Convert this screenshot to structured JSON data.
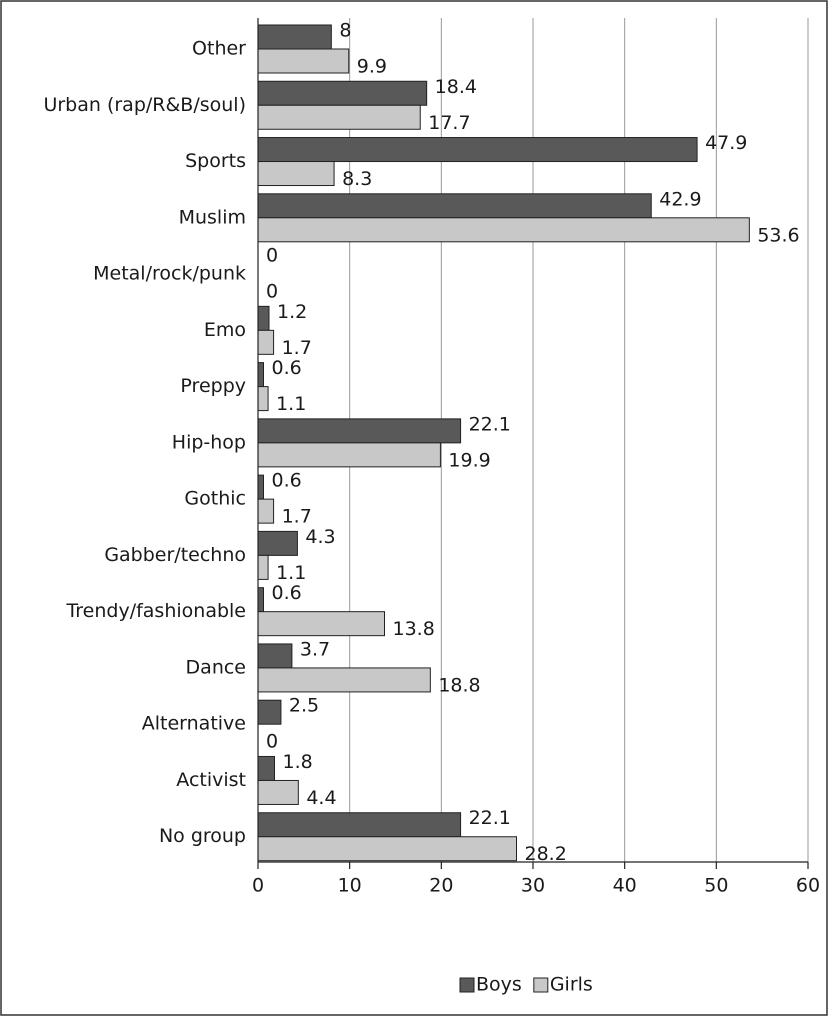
{
  "chart_data": {
    "type": "bar",
    "orientation": "horizontal",
    "categories": [
      "Other",
      "Urban (rap/R&B/soul)",
      "Sports",
      "Muslim",
      "Metal/rock/punk",
      "Emo",
      "Preppy",
      "Hip-hop",
      "Gothic",
      "Gabber/techno",
      "Trendy/fashionable",
      "Dance",
      "Alternative",
      "Activist",
      "No group"
    ],
    "series": [
      {
        "name": "Boys",
        "color": "#595959",
        "values": [
          8,
          18.4,
          47.9,
          42.9,
          0,
          1.2,
          0.6,
          22.1,
          0.6,
          4.3,
          0.6,
          3.7,
          2.5,
          1.8,
          22.1
        ]
      },
      {
        "name": "Girls",
        "color": "#c8c8c8",
        "values": [
          9.9,
          17.7,
          8.3,
          53.6,
          0,
          1.7,
          1.1,
          19.9,
          1.7,
          1.1,
          13.8,
          18.8,
          0,
          4.4,
          28.2
        ]
      }
    ],
    "xlim": [
      0,
      60
    ],
    "xticks": [
      0,
      10,
      20,
      30,
      40,
      50,
      60
    ],
    "grid": true,
    "legend": "bottom"
  }
}
